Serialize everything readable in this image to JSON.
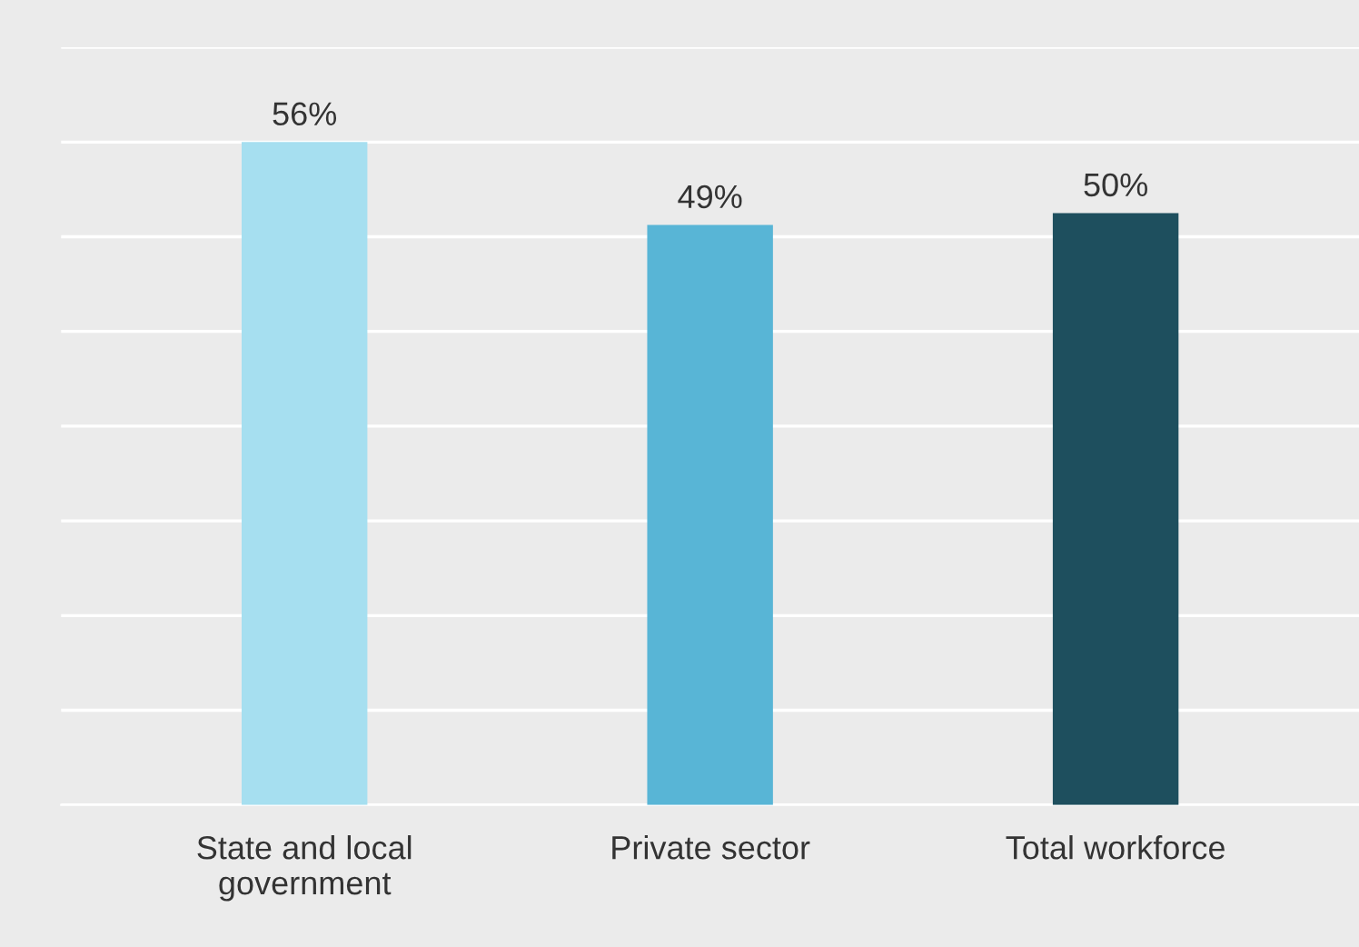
{
  "chart_data": {
    "type": "bar",
    "categories": [
      "State and local\ngovernment",
      "Private sector",
      "Total workforce"
    ],
    "values": [
      56,
      49,
      50
    ],
    "colors": [
      "#a6dff0",
      "#58b5d6",
      "#1e4f5e"
    ],
    "value_labels": [
      "56%",
      "49%",
      "50%"
    ],
    "ylim": [
      0,
      64
    ],
    "yticks": [
      {
        "value": 0,
        "label": null
      },
      {
        "value": 8,
        "label": null
      },
      {
        "value": 16,
        "label": null
      },
      {
        "value": 24,
        "label": null
      },
      {
        "value": 32,
        "label": null
      },
      {
        "value": 40,
        "label": null
      },
      {
        "value": 48,
        "label": null
      },
      {
        "value": 56,
        "label": null
      },
      {
        "value": 64,
        "label": null
      }
    ],
    "tick_labels": "x",
    "grid": "y"
  }
}
